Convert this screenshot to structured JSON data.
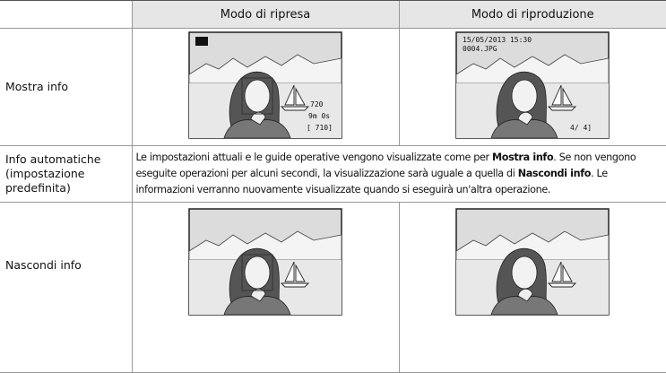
{
  "table": {
    "columns": [
      "Modo di ripresa",
      "Modo di riproduzione"
    ],
    "rows": [
      {
        "label": "Mostra info",
        "shooting_overlay": [
          "720",
          "9m 0s",
          "[ 710]"
        ],
        "playback_overlay": [
          "15/05/2013 15:30",
          "0004.JPG",
          "4/ 4]"
        ]
      },
      {
        "label": "Info automatiche (impostazione predefinita)",
        "description": [
          {
            "text": "Le impostazioni attuali e le guide operative vengono visualizzate come per ",
            "bold": false
          },
          {
            "text": "Mostra info",
            "bold": true
          },
          {
            "text": ". Se non vengono eseguite operazioni per alcuni secondi, la visualizzazione sarà uguale a quella di ",
            "bold": false
          },
          {
            "text": "Nascondi info",
            "bold": true
          },
          {
            "text": ". Le informazioni verranno nuovamente visualizzate quando si eseguirà un'altra operazione.",
            "bold": false
          }
        ]
      },
      {
        "label": "Nascondi info"
      }
    ]
  }
}
